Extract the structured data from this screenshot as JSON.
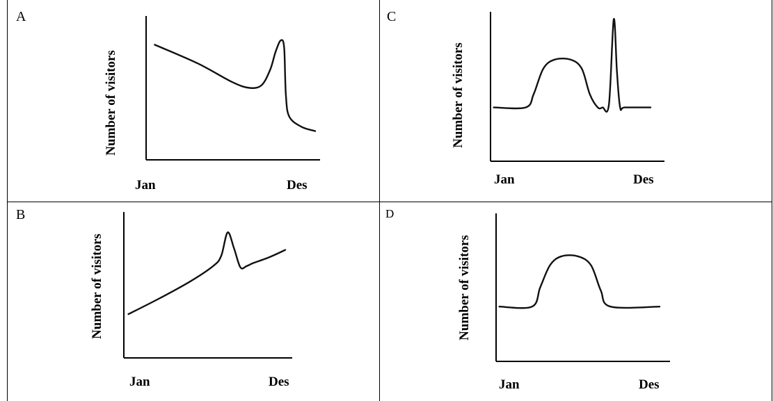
{
  "panels": [
    {
      "letter": "A",
      "ylabel": "Number of visitors",
      "x_start": "Jan",
      "x_end": "Des"
    },
    {
      "letter": "C",
      "ylabel": "Number of visitors",
      "x_start": "Jan",
      "x_end": "Des"
    },
    {
      "letter": "B",
      "ylabel": "Number of visitors",
      "x_start": "Jan",
      "x_end": "Des"
    },
    {
      "letter": "D",
      "ylabel": "Number of visitors",
      "x_start": "Jan",
      "x_end": "Des"
    }
  ],
  "chart_data": [
    {
      "type": "line",
      "panel": "A",
      "xlabel": "",
      "ylabel": "Number of visitors",
      "tick_labels": [
        "Jan",
        "Des"
      ],
      "xlim": [
        0,
        1
      ],
      "ylim": [
        0,
        1
      ],
      "series": [
        {
          "x": [
            0.05,
            0.3,
            0.5,
            0.6,
            0.67,
            0.72,
            0.75,
            0.78,
            0.8,
            0.81,
            0.83,
            0.9,
            0.98
          ],
          "y": [
            0.8,
            0.67,
            0.54,
            0.5,
            0.52,
            0.63,
            0.75,
            0.83,
            0.78,
            0.45,
            0.3,
            0.23,
            0.2
          ]
        }
      ],
      "grid": false
    },
    {
      "type": "line",
      "panel": "C",
      "xlabel": "",
      "ylabel": "Number of visitors",
      "tick_labels": [
        "Jan",
        "Des"
      ],
      "xlim": [
        0,
        1
      ],
      "ylim": [
        0,
        1
      ],
      "series": [
        {
          "x": [
            0.02,
            0.22,
            0.27,
            0.33,
            0.4,
            0.5,
            0.57,
            0.62,
            0.67,
            0.7,
            0.74,
            0.77,
            0.79,
            0.81,
            0.84,
            1.0
          ],
          "y": [
            0.36,
            0.36,
            0.45,
            0.62,
            0.68,
            0.68,
            0.62,
            0.45,
            0.36,
            0.36,
            0.38,
            0.95,
            0.6,
            0.36,
            0.36,
            0.36
          ]
        }
      ],
      "grid": false
    },
    {
      "type": "line",
      "panel": "B",
      "xlabel": "",
      "ylabel": "Number of visitors",
      "tick_labels": [
        "Jan",
        "Des"
      ],
      "xlim": [
        0,
        1
      ],
      "ylim": [
        0,
        1
      ],
      "series": [
        {
          "x": [
            0.02,
            0.2,
            0.4,
            0.55,
            0.6,
            0.64,
            0.68,
            0.72,
            0.76,
            0.8,
            0.9,
            1.0
          ],
          "y": [
            0.3,
            0.4,
            0.52,
            0.63,
            0.7,
            0.86,
            0.75,
            0.62,
            0.63,
            0.65,
            0.69,
            0.74
          ]
        }
      ],
      "grid": false
    },
    {
      "type": "line",
      "panel": "D",
      "xlabel": "",
      "ylabel": "Number of visitors",
      "tick_labels": [
        "Jan",
        "Des"
      ],
      "xlim": [
        0,
        1
      ],
      "ylim": [
        0,
        1
      ],
      "series": [
        {
          "x": [
            0.02,
            0.22,
            0.27,
            0.33,
            0.4,
            0.5,
            0.58,
            0.64,
            0.7,
            1.0
          ],
          "y": [
            0.37,
            0.37,
            0.5,
            0.65,
            0.71,
            0.71,
            0.65,
            0.48,
            0.37,
            0.37
          ]
        }
      ],
      "grid": false
    }
  ]
}
